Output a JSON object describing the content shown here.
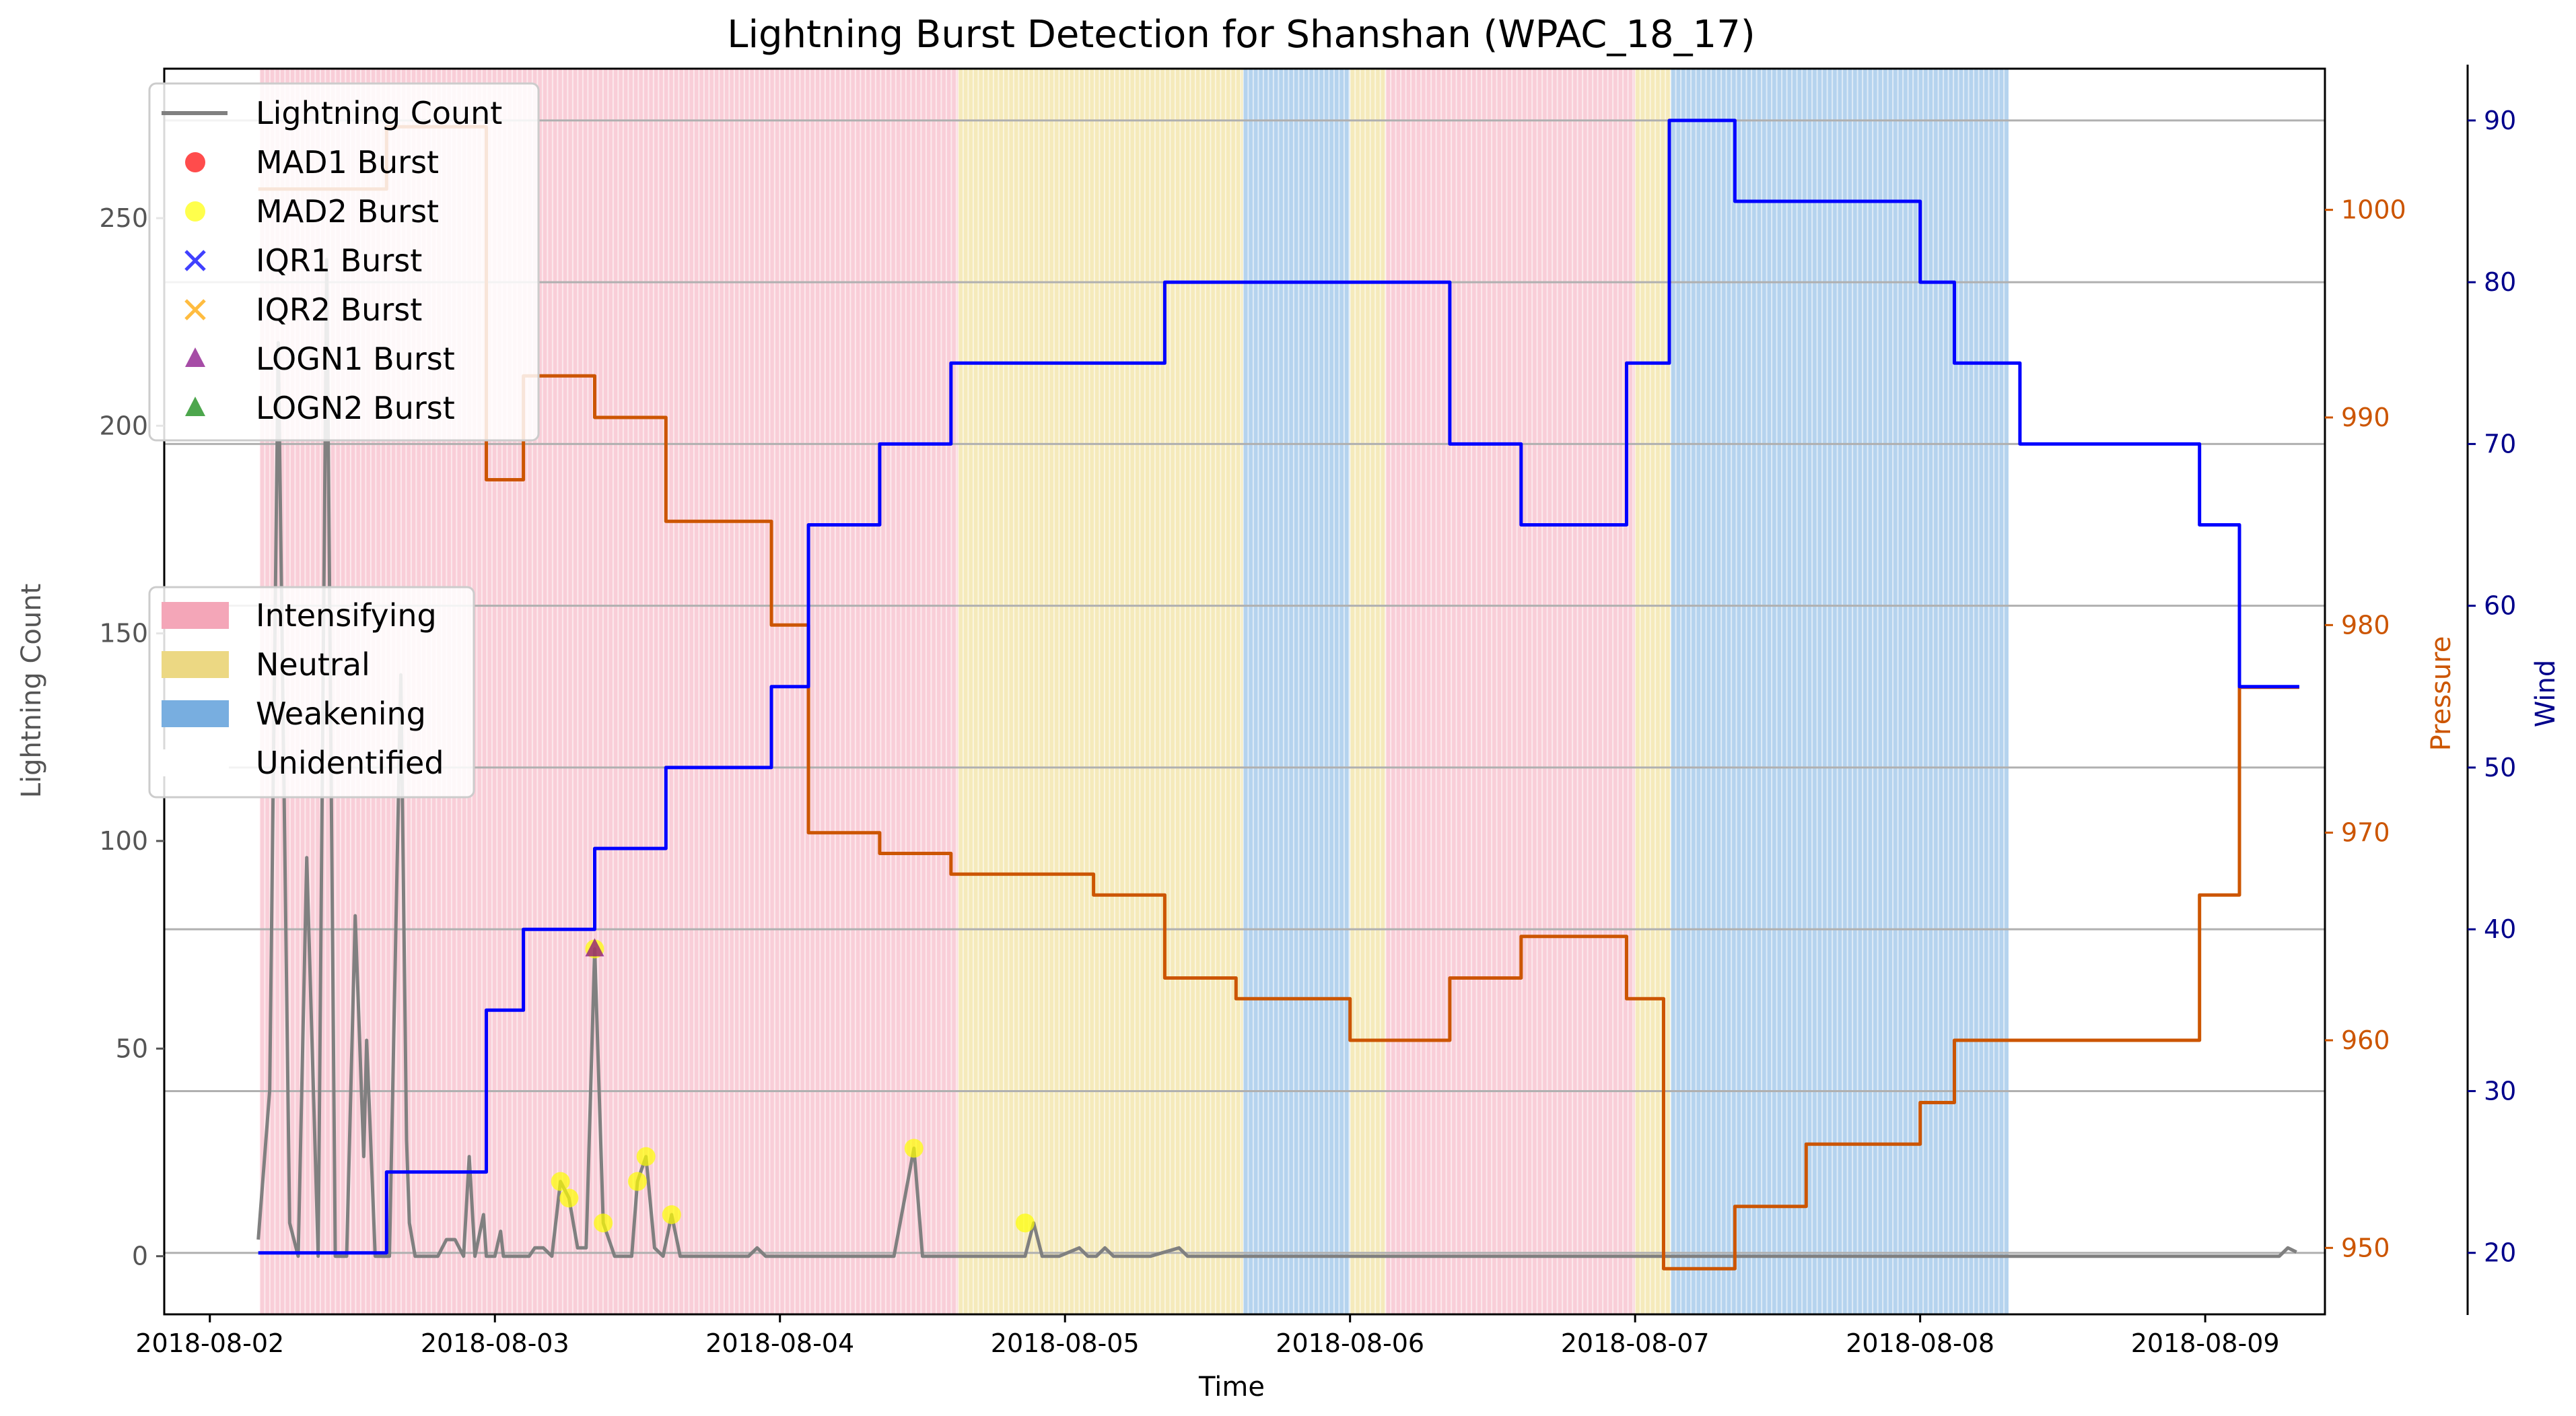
{
  "chart_data": {
    "type": "line",
    "title": "Lightning Burst Detection for Shanshan (WPAC_18_17)",
    "xlabel": "Time",
    "ylabel_left": "Lightning Count",
    "ylabel_right_pressure": "Pressure",
    "ylabel_right_wind": "Wind",
    "x_ticks": [
      "2018-08-02",
      "2018-08-03",
      "2018-08-04",
      "2018-08-05",
      "2018-08-06",
      "2018-08-07",
      "2018-08-08",
      "2018-08-09"
    ],
    "y_ticks_left": [
      0,
      50,
      100,
      150,
      200,
      250
    ],
    "y_ticks_pressure": [
      950,
      960,
      970,
      980,
      990,
      1000
    ],
    "y_ticks_wind": [
      20,
      30,
      40,
      50,
      60,
      70,
      80,
      90
    ],
    "xlim": [
      -0.16,
      7.42
    ],
    "ylim_left": [
      -14,
      286
    ],
    "ylim_pressure": [
      946.8,
      1006.8
    ],
    "ylim_wind": [
      16.2,
      93.2
    ],
    "grid": "horizontal lines at wind ticks",
    "colors": {
      "lightning": "#808080",
      "pressure": "#cc5500",
      "wind": "#0000ff",
      "intensifying": "#f4a6b8",
      "neutral": "#ecd883",
      "weakening": "#78aee0",
      "mad1": "#ff0000",
      "mad2": "#ffff00",
      "iqr1": "#0000ff",
      "iqr2": "#ffa500",
      "logn1": "#800080",
      "logn2": "#008000"
    },
    "legend_series": [
      {
        "name": "Lightning Count",
        "kind": "line",
        "color": "#808080"
      },
      {
        "name": "MAD1 Burst",
        "kind": "circle",
        "color": "#ff0000"
      },
      {
        "name": "MAD2 Burst",
        "kind": "circle",
        "color": "#ffff00"
      },
      {
        "name": "IQR1 Burst",
        "kind": "x",
        "color": "#0000ff"
      },
      {
        "name": "IQR2 Burst",
        "kind": "x",
        "color": "#ffa500"
      },
      {
        "name": "LOGN1 Burst",
        "kind": "triangle",
        "color": "#800080"
      },
      {
        "name": "LOGN2 Burst",
        "kind": "triangle",
        "color": "#008000"
      }
    ],
    "legend_phases": [
      {
        "name": "Intensifying",
        "color": "#f4a6b8"
      },
      {
        "name": "Neutral",
        "color": "#ecd883"
      },
      {
        "name": "Weakening",
        "color": "#78aee0"
      },
      {
        "name": "Unidentified",
        "color": "#ffffff"
      }
    ],
    "phases": [
      {
        "phase": "Intensifying",
        "start": 0.175,
        "end": 2.625
      },
      {
        "phase": "Neutral",
        "start": 2.625,
        "end": 3.625
      },
      {
        "phase": "Weakening",
        "start": 3.625,
        "end": 4.0
      },
      {
        "phase": "Neutral",
        "start": 4.0,
        "end": 4.125
      },
      {
        "phase": "Intensifying",
        "start": 4.125,
        "end": 5.0
      },
      {
        "phase": "Neutral",
        "start": 5.0,
        "end": 5.125
      },
      {
        "phase": "Weakening",
        "start": 5.125,
        "end": 6.31
      }
    ],
    "lightning": {
      "name": "Lightning Count",
      "x": [
        0.17,
        0.21,
        0.24,
        0.28,
        0.31,
        0.34,
        0.38,
        0.41,
        0.44,
        0.48,
        0.51,
        0.54,
        0.55,
        0.56,
        0.58,
        0.6,
        0.63,
        0.67,
        0.69,
        0.7,
        0.72,
        0.74,
        0.77,
        0.8,
        0.83,
        0.86,
        0.89,
        0.91,
        0.93,
        0.96,
        0.97,
        0.99,
        1.0,
        1.02,
        1.03,
        1.05,
        1.07,
        1.08,
        1.1,
        1.12,
        1.14,
        1.17,
        1.2,
        1.23,
        1.26,
        1.29,
        1.32,
        1.35,
        1.38,
        1.41,
        1.42,
        1.44,
        1.46,
        1.48,
        1.5,
        1.53,
        1.56,
        1.59,
        1.62,
        1.65,
        1.68,
        1.71,
        1.72,
        1.74,
        1.77,
        1.8,
        1.83,
        1.86,
        1.89,
        1.92,
        1.95,
        2.0,
        2.05,
        2.1,
        2.2,
        2.3,
        2.4,
        2.47,
        2.5,
        2.53,
        2.6,
        2.7,
        2.8,
        2.86,
        2.89,
        2.92,
        2.98,
        3.05,
        3.08,
        3.11,
        3.14,
        3.17,
        3.2,
        3.3,
        3.4,
        3.43,
        3.46,
        3.5,
        3.6,
        3.8,
        4.0,
        4.5,
        5.0,
        5.5,
        6.0,
        6.5,
        7.0,
        7.26,
        7.29,
        7.32
      ],
      "y": [
        4,
        40,
        220,
        8,
        0,
        96,
        0,
        240,
        0,
        0,
        82,
        24,
        52,
        35,
        0,
        0,
        0,
        140,
        28,
        8,
        0,
        0,
        0,
        0,
        4,
        4,
        0,
        24,
        0,
        10,
        0,
        0,
        0,
        6,
        0,
        0,
        0,
        0,
        0,
        0,
        2,
        2,
        0,
        18,
        14,
        2,
        2,
        74,
        8,
        2,
        0,
        0,
        0,
        0,
        18,
        24,
        2,
        0,
        10,
        0,
        0,
        0,
        0,
        0,
        0,
        0,
        0,
        0,
        0,
        2,
        0,
        0,
        0,
        0,
        0,
        0,
        0,
        26,
        0,
        0,
        0,
        0,
        0,
        0,
        8,
        0,
        0,
        2,
        0,
        0,
        2,
        0,
        0,
        0,
        2,
        0,
        0,
        0,
        0,
        0,
        0,
        0,
        0,
        0,
        0,
        0,
        0,
        0,
        2,
        1
      ]
    },
    "pressure": {
      "name": "Pressure",
      "x": [
        0.17,
        0.62,
        0.62,
        0.97,
        0.97,
        1.1,
        1.1,
        1.35,
        1.35,
        1.6,
        1.6,
        1.97,
        1.97,
        2.1,
        2.1,
        2.35,
        2.35,
        2.6,
        2.6,
        3.1,
        3.1,
        3.35,
        3.35,
        3.6,
        3.6,
        4.0,
        4.0,
        4.35,
        4.35,
        4.6,
        4.6,
        4.97,
        4.97,
        5.1,
        5.1,
        5.35,
        5.35,
        5.6,
        5.6,
        6.0,
        6.0,
        6.12,
        6.12,
        6.98,
        6.98,
        7.12,
        7.12,
        7.33
      ],
      "y": [
        1001,
        1001,
        1004,
        1004,
        987,
        987,
        992,
        992,
        990,
        990,
        985,
        985,
        980,
        980,
        970,
        970,
        969,
        969,
        968,
        968,
        967,
        967,
        963,
        963,
        962,
        962,
        960,
        960,
        963,
        963,
        965,
        965,
        962,
        962,
        949,
        949,
        952,
        952,
        955,
        955,
        957,
        957,
        960,
        960,
        967,
        967,
        977,
        977
      ]
    },
    "wind": {
      "name": "Wind",
      "x": [
        0.17,
        0.62,
        0.62,
        0.97,
        0.97,
        1.1,
        1.1,
        1.35,
        1.35,
        1.6,
        1.6,
        1.97,
        1.97,
        2.1,
        2.1,
        2.35,
        2.35,
        2.6,
        2.6,
        3.35,
        3.35,
        4.35,
        4.35,
        4.6,
        4.6,
        4.97,
        4.97,
        5.12,
        5.12,
        5.35,
        5.35,
        5.6,
        5.6,
        6.0,
        6.0,
        6.12,
        6.12,
        6.35,
        6.35,
        6.98,
        6.98,
        7.12,
        7.12,
        7.33
      ],
      "y": [
        20,
        20,
        25,
        25,
        35,
        35,
        40,
        40,
        45,
        45,
        50,
        50,
        55,
        55,
        65,
        65,
        70,
        70,
        75,
        75,
        80,
        80,
        70,
        70,
        65,
        65,
        75,
        75,
        90,
        90,
        85,
        85,
        85,
        85,
        80,
        80,
        75,
        75,
        70,
        70,
        65,
        65,
        55,
        55
      ]
    },
    "mad2_bursts": [
      {
        "x": 1.35,
        "y": 74
      },
      {
        "x": 1.38,
        "y": 8
      },
      {
        "x": 1.23,
        "y": 18
      },
      {
        "x": 1.26,
        "y": 14
      },
      {
        "x": 1.53,
        "y": 24
      },
      {
        "x": 1.5,
        "y": 18
      },
      {
        "x": 1.62,
        "y": 10
      },
      {
        "x": 2.47,
        "y": 26
      },
      {
        "x": 2.86,
        "y": 8
      }
    ],
    "logn1_bursts": [
      {
        "x": 1.35,
        "y": 74
      }
    ]
  }
}
